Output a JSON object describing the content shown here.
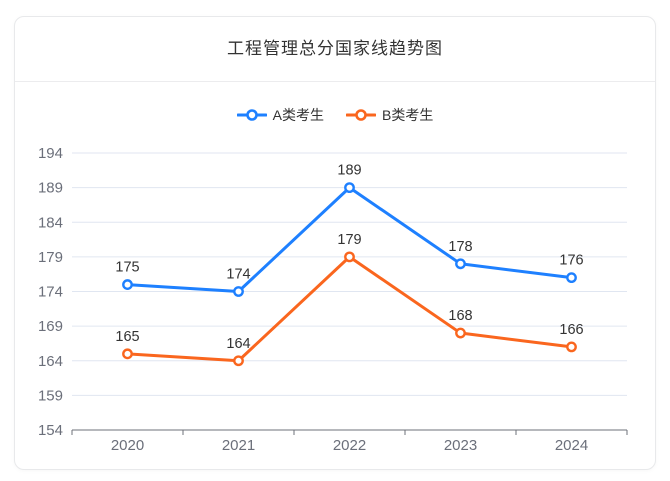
{
  "card": {
    "title": "工程管理总分国家线趋势图"
  },
  "chart_data": {
    "type": "line",
    "title": "工程管理总分国家线趋势图",
    "categories": [
      "2020",
      "2021",
      "2022",
      "2023",
      "2024"
    ],
    "series": [
      {
        "name": "A类考生",
        "color": "#1e80ff",
        "values": [
          175,
          174,
          189,
          178,
          176
        ]
      },
      {
        "name": "B类考生",
        "color": "#fa661e",
        "values": [
          165,
          164,
          179,
          168,
          166
        ]
      }
    ],
    "ylim": [
      154,
      194
    ],
    "yticks": [
      154,
      159,
      164,
      169,
      174,
      179,
      184,
      189,
      194
    ],
    "grid": true,
    "legend_position": "top",
    "data_labels": true,
    "colors": {
      "axis_line": "#6e7079",
      "axis_text": "#6b6f7a",
      "gridline": "#e0e6f1",
      "data_label": "#333333",
      "marker_fill": "#ffffff"
    }
  }
}
